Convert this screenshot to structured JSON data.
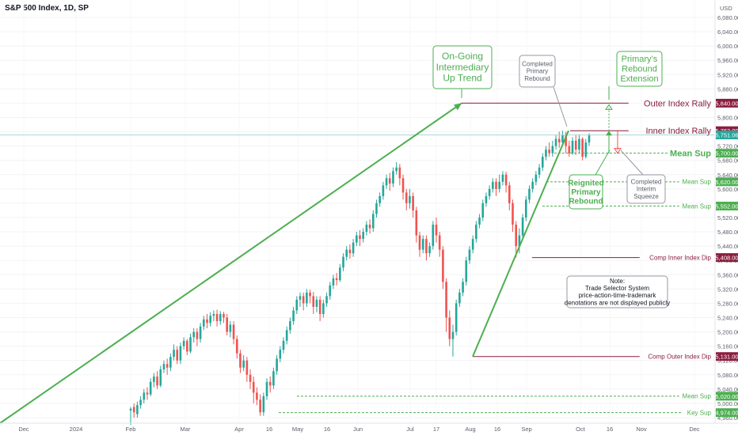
{
  "chart_data": {
    "type": "candlestick",
    "title": "S&P 500 Index, 1D, SP",
    "currency": "USD",
    "ylim": [
      4870,
      6110
    ],
    "y_ticks": [
      6080,
      6040,
      6000,
      5960,
      5920,
      5880,
      5840,
      5800,
      5760,
      5720,
      5680,
      5640,
      5600,
      5560,
      5520,
      5480,
      5440,
      5400,
      5360,
      5320,
      5280,
      5240,
      5200,
      5160,
      5120,
      5080,
      5040,
      5000,
      4960
    ],
    "x_ticks": [
      "Dec",
      "2024",
      "Feb",
      "Mar",
      "Apr",
      "16",
      "May",
      "16",
      "Jun",
      "Jul",
      "17",
      "Aug",
      "16",
      "Sep",
      "Oct",
      "16",
      "Nov",
      "Dec"
    ],
    "last_price": 5751.06,
    "candles_approx": [
      [
        4980,
        4985,
        4940,
        4990
      ],
      [
        4990,
        4975,
        4960,
        5000
      ],
      [
        4970,
        4995,
        4960,
        5005
      ],
      [
        4995,
        5010,
        4985,
        5020
      ],
      [
        5010,
        5030,
        5000,
        5040
      ],
      [
        5030,
        5025,
        5010,
        5045
      ],
      [
        5025,
        5060,
        5020,
        5070
      ],
      [
        5060,
        5075,
        5045,
        5085
      ],
      [
        5075,
        5050,
        5040,
        5090
      ],
      [
        5050,
        5095,
        5045,
        5105
      ],
      [
        5095,
        5110,
        5085,
        5120
      ],
      [
        5110,
        5100,
        5080,
        5125
      ],
      [
        5100,
        5130,
        5090,
        5140
      ],
      [
        5130,
        5150,
        5120,
        5165
      ],
      [
        5150,
        5120,
        5110,
        5160
      ],
      [
        5120,
        5160,
        5110,
        5170
      ],
      [
        5160,
        5175,
        5150,
        5185
      ],
      [
        5175,
        5145,
        5135,
        5180
      ],
      [
        5145,
        5185,
        5140,
        5195
      ],
      [
        5185,
        5200,
        5170,
        5210
      ],
      [
        5200,
        5180,
        5160,
        5210
      ],
      [
        5180,
        5215,
        5170,
        5225
      ],
      [
        5215,
        5235,
        5205,
        5245
      ],
      [
        5235,
        5225,
        5210,
        5250
      ],
      [
        5225,
        5245,
        5215,
        5255
      ],
      [
        5245,
        5250,
        5230,
        5260
      ],
      [
        5250,
        5230,
        5215,
        5262
      ],
      [
        5230,
        5250,
        5220,
        5258
      ],
      [
        5250,
        5240,
        5225,
        5256
      ],
      [
        5240,
        5200,
        5190,
        5250
      ],
      [
        5200,
        5220,
        5185,
        5230
      ],
      [
        5220,
        5180,
        5165,
        5230
      ],
      [
        5180,
        5140,
        5125,
        5190
      ],
      [
        5140,
        5100,
        5085,
        5150
      ],
      [
        5100,
        5120,
        5090,
        5135
      ],
      [
        5120,
        5080,
        5060,
        5130
      ],
      [
        5080,
        5060,
        5040,
        5095
      ],
      [
        5060,
        5030,
        5000,
        5075
      ],
      [
        5030,
        5010,
        4995,
        5045
      ],
      [
        5010,
        4975,
        4965,
        5025
      ],
      [
        4975,
        5020,
        4965,
        5030
      ],
      [
        5020,
        5060,
        5010,
        5070
      ],
      [
        5060,
        5050,
        5030,
        5075
      ],
      [
        5050,
        5090,
        5040,
        5100
      ],
      [
        5090,
        5125,
        5080,
        5135
      ],
      [
        5125,
        5150,
        5115,
        5160
      ],
      [
        5150,
        5175,
        5140,
        5185
      ],
      [
        5175,
        5205,
        5165,
        5215
      ],
      [
        5205,
        5230,
        5195,
        5240
      ],
      [
        5230,
        5260,
        5220,
        5270
      ],
      [
        5260,
        5290,
        5250,
        5300
      ],
      [
        5290,
        5300,
        5270,
        5310
      ],
      [
        5300,
        5280,
        5260,
        5310
      ],
      [
        5280,
        5310,
        5270,
        5320
      ],
      [
        5310,
        5300,
        5280,
        5318
      ],
      [
        5300,
        5270,
        5250,
        5312
      ],
      [
        5270,
        5290,
        5255,
        5300
      ],
      [
        5290,
        5250,
        5230,
        5300
      ],
      [
        5250,
        5280,
        5240,
        5290
      ],
      [
        5280,
        5300,
        5270,
        5310
      ],
      [
        5300,
        5330,
        5290,
        5340
      ],
      [
        5330,
        5350,
        5320,
        5360
      ],
      [
        5350,
        5345,
        5330,
        5365
      ],
      [
        5345,
        5380,
        5340,
        5390
      ],
      [
        5380,
        5410,
        5370,
        5420
      ],
      [
        5410,
        5430,
        5400,
        5440
      ],
      [
        5430,
        5420,
        5405,
        5445
      ],
      [
        5420,
        5450,
        5410,
        5460
      ],
      [
        5450,
        5470,
        5440,
        5480
      ],
      [
        5470,
        5460,
        5440,
        5485
      ],
      [
        5460,
        5480,
        5450,
        5490
      ],
      [
        5480,
        5500,
        5470,
        5510
      ],
      [
        5500,
        5490,
        5475,
        5515
      ],
      [
        5490,
        5530,
        5480,
        5540
      ],
      [
        5530,
        5560,
        5520,
        5570
      ],
      [
        5560,
        5580,
        5550,
        5590
      ],
      [
        5580,
        5610,
        5570,
        5620
      ],
      [
        5610,
        5630,
        5600,
        5640
      ],
      [
        5630,
        5615,
        5595,
        5645
      ],
      [
        5615,
        5650,
        5605,
        5660
      ],
      [
        5650,
        5660,
        5640,
        5675
      ],
      [
        5660,
        5630,
        5610,
        5670
      ],
      [
        5630,
        5590,
        5570,
        5640
      ],
      [
        5590,
        5560,
        5540,
        5600
      ],
      [
        5560,
        5580,
        5545,
        5600
      ],
      [
        5580,
        5540,
        5520,
        5590
      ],
      [
        5540,
        5470,
        5450,
        5550
      ],
      [
        5470,
        5430,
        5410,
        5480
      ],
      [
        5430,
        5460,
        5420,
        5470
      ],
      [
        5460,
        5420,
        5400,
        5470
      ],
      [
        5420,
        5440,
        5410,
        5450
      ],
      [
        5440,
        5500,
        5430,
        5510
      ],
      [
        5500,
        5470,
        5450,
        5520
      ],
      [
        5470,
        5430,
        5410,
        5480
      ],
      [
        5430,
        5340,
        5320,
        5440
      ],
      [
        5340,
        5240,
        5200,
        5350
      ],
      [
        5240,
        5180,
        5160,
        5260
      ],
      [
        5180,
        5200,
        5131,
        5220
      ],
      [
        5200,
        5280,
        5190,
        5290
      ],
      [
        5280,
        5310,
        5270,
        5320
      ],
      [
        5310,
        5340,
        5300,
        5350
      ],
      [
        5340,
        5400,
        5330,
        5410
      ],
      [
        5400,
        5430,
        5390,
        5440
      ],
      [
        5430,
        5460,
        5420,
        5470
      ],
      [
        5460,
        5500,
        5450,
        5510
      ],
      [
        5500,
        5520,
        5490,
        5530
      ],
      [
        5520,
        5560,
        5510,
        5570
      ],
      [
        5560,
        5580,
        5550,
        5590
      ],
      [
        5580,
        5600,
        5570,
        5610
      ],
      [
        5600,
        5620,
        5590,
        5630
      ],
      [
        5620,
        5600,
        5580,
        5630
      ],
      [
        5600,
        5620,
        5590,
        5640
      ],
      [
        5620,
        5640,
        5610,
        5650
      ],
      [
        5640,
        5610,
        5590,
        5648
      ],
      [
        5610,
        5560,
        5540,
        5620
      ],
      [
        5560,
        5500,
        5480,
        5570
      ],
      [
        5500,
        5440,
        5408,
        5510
      ],
      [
        5440,
        5470,
        5420,
        5490
      ],
      [
        5470,
        5520,
        5460,
        5530
      ],
      [
        5520,
        5570,
        5510,
        5580
      ],
      [
        5570,
        5600,
        5560,
        5610
      ],
      [
        5600,
        5620,
        5590,
        5630
      ],
      [
        5620,
        5640,
        5610,
        5650
      ],
      [
        5640,
        5660,
        5630,
        5670
      ],
      [
        5660,
        5690,
        5650,
        5700
      ],
      [
        5690,
        5710,
        5680,
        5720
      ],
      [
        5710,
        5700,
        5690,
        5730
      ],
      [
        5700,
        5720,
        5690,
        5735
      ],
      [
        5720,
        5740,
        5710,
        5750
      ],
      [
        5740,
        5730,
        5715,
        5760
      ],
      [
        5730,
        5750,
        5720,
        5763
      ],
      [
        5750,
        5720,
        5700,
        5760
      ],
      [
        5720,
        5700,
        5690,
        5735
      ],
      [
        5700,
        5735,
        5695,
        5745
      ],
      [
        5735,
        5710,
        5695,
        5750
      ],
      [
        5710,
        5740,
        5700,
        5752
      ],
      [
        5740,
        5690,
        5680,
        5745
      ],
      [
        5690,
        5730,
        5685,
        5740
      ],
      [
        5730,
        5751,
        5720,
        5756
      ]
    ],
    "levels": [
      {
        "label": "Outer Index Rally",
        "value": 5840.0,
        "value_label": "5,840.00",
        "style": "solid",
        "color": "#8b1e3f"
      },
      {
        "label": "Inner Index Rally",
        "value": 5763.0,
        "value_label": "5,763.00",
        "style": "solid",
        "color": "#8b1e3f"
      },
      {
        "label": "Mean Sup",
        "value": 5700.0,
        "value_label": "5,700.00",
        "style": "dashed",
        "color": "#4caf50"
      },
      {
        "label": "Mean Sup",
        "value": 5620.0,
        "value_label": "5,620.00",
        "style": "dashed",
        "color": "#4caf50"
      },
      {
        "label": "Mean Sup",
        "value": 5552.0,
        "value_label": "5,552.00",
        "style": "dashed",
        "color": "#4caf50"
      },
      {
        "label": "Comp Inner Index Dip",
        "value": 5408.0,
        "value_label": "5,408.00",
        "style": "solid",
        "color": "#8b1e3f"
      },
      {
        "label": "Comp Outer Index Dip",
        "value": 5131.0,
        "value_label": "5,131.00",
        "style": "solid",
        "color": "#8b1e3f"
      },
      {
        "label": "Mean Sup",
        "value": 5020.0,
        "value_label": "5,020.00",
        "style": "dashed",
        "color": "#4caf50"
      },
      {
        "label": "Key Sup",
        "value": 4974.0,
        "value_label": "4,974.00",
        "style": "dashed",
        "color": "#4caf50"
      }
    ],
    "annotations": [
      {
        "text": "On-Going Intermediary Up Trend",
        "color": "#4caf50"
      },
      {
        "text": "Completed Primary Rebound",
        "color": "#5d606b"
      },
      {
        "text": "Primary's Rebound Extension",
        "color": "#4caf50"
      },
      {
        "text": "Reignited Primary Rebound",
        "color": "#4caf50"
      },
      {
        "text": "Completed Interim Squeeze",
        "color": "#5d606b"
      },
      {
        "text": "Note: Trade Selector System price-action-time-trademark denotations are not displayed publicly",
        "color": "#131722"
      }
    ],
    "colors": {
      "up": "#26a69a",
      "down": "#ef5350",
      "trend": "#4caf50",
      "resistance": "#8b1e3f",
      "last_price_bg": "#26a69a",
      "price_line": "#a5d6d2"
    }
  }
}
